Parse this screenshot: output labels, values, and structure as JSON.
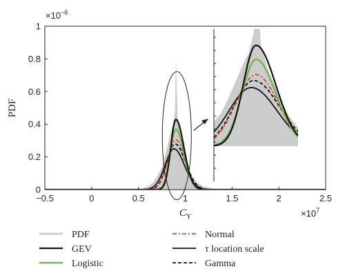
{
  "chart_data": {
    "type": "line",
    "xlabel": "C",
    "xlabel_sub": "Y",
    "ylabel": "PDF",
    "x_multiplier": "×10",
    "x_multiplier_exp": "7",
    "y_multiplier": "×10",
    "y_multiplier_exp": "−6",
    "xlim": [
      -0.5,
      2.5
    ],
    "ylim": [
      0,
      1
    ],
    "xticks": [
      "−0.5",
      "0",
      "0.5",
      "1",
      "1.5",
      "2",
      "2.5"
    ],
    "xtick_values": [
      -0.5,
      0,
      0.5,
      1,
      1.5,
      2,
      2.5
    ],
    "yticks": [
      "0",
      "0.2",
      "0.4",
      "0.6",
      "0.8",
      "1"
    ],
    "ytick_values": [
      0,
      0.2,
      0.4,
      0.6,
      0.8,
      1
    ],
    "grid": false,
    "histogram": {
      "name": "PDF",
      "color": "#cccccc",
      "x": [
        0.55,
        0.6,
        0.65,
        0.7,
        0.75,
        0.78,
        0.81,
        0.84,
        0.87,
        0.89,
        0.9,
        0.91,
        0.92,
        0.93,
        0.95,
        0.98,
        1.01,
        1.04,
        1.08,
        1.13,
        1.2,
        1.3
      ],
      "y": [
        0.01,
        0.02,
        0.04,
        0.08,
        0.14,
        0.2,
        0.27,
        0.34,
        0.4,
        0.48,
        0.8,
        0.6,
        0.44,
        0.4,
        0.33,
        0.26,
        0.19,
        0.13,
        0.08,
        0.04,
        0.02,
        0.005
      ]
    },
    "series": [
      {
        "name": "GEV",
        "color": "#111111",
        "dash": "",
        "width": 2.2,
        "mu": 0.9,
        "peak": 0.43,
        "sL": 0.055,
        "sR": 0.085
      },
      {
        "name": "Logistic",
        "color": "#6cb34a",
        "dash": "",
        "width": 2.2,
        "mu": 0.9,
        "peak": 0.37,
        "sL": 0.06,
        "sR": 0.085
      },
      {
        "name": "Normal",
        "color": "#e0412a",
        "dash": "6,3,2,3",
        "width": 1.8,
        "mu": 0.9,
        "peak": 0.305,
        "sL": 0.085,
        "sR": 0.095
      },
      {
        "name": "τ location scale",
        "color": "#111111",
        "dash": "",
        "width": 1.8,
        "mu": 0.88,
        "peak": 0.25,
        "sL": 0.095,
        "sR": 0.11
      },
      {
        "name": "Gamma",
        "color": "#111111",
        "dash": "5,3",
        "width": 1.8,
        "mu": 0.89,
        "peak": 0.28,
        "sL": 0.085,
        "sR": 0.11
      }
    ],
    "inset": {
      "xlim": [
        0.72,
        1.08
      ],
      "ylim": [
        0,
        0.5
      ]
    },
    "legend": {
      "placement": "bottom",
      "entries": [
        {
          "label": "PDF",
          "style": "hist"
        },
        {
          "label": "GEV",
          "series": 0
        },
        {
          "label": "Logistic",
          "series": 1
        },
        {
          "label": "Normal",
          "series": 2
        },
        {
          "label": "τ location scale",
          "series": 3
        },
        {
          "label": "Gamma",
          "series": 4
        }
      ]
    }
  }
}
